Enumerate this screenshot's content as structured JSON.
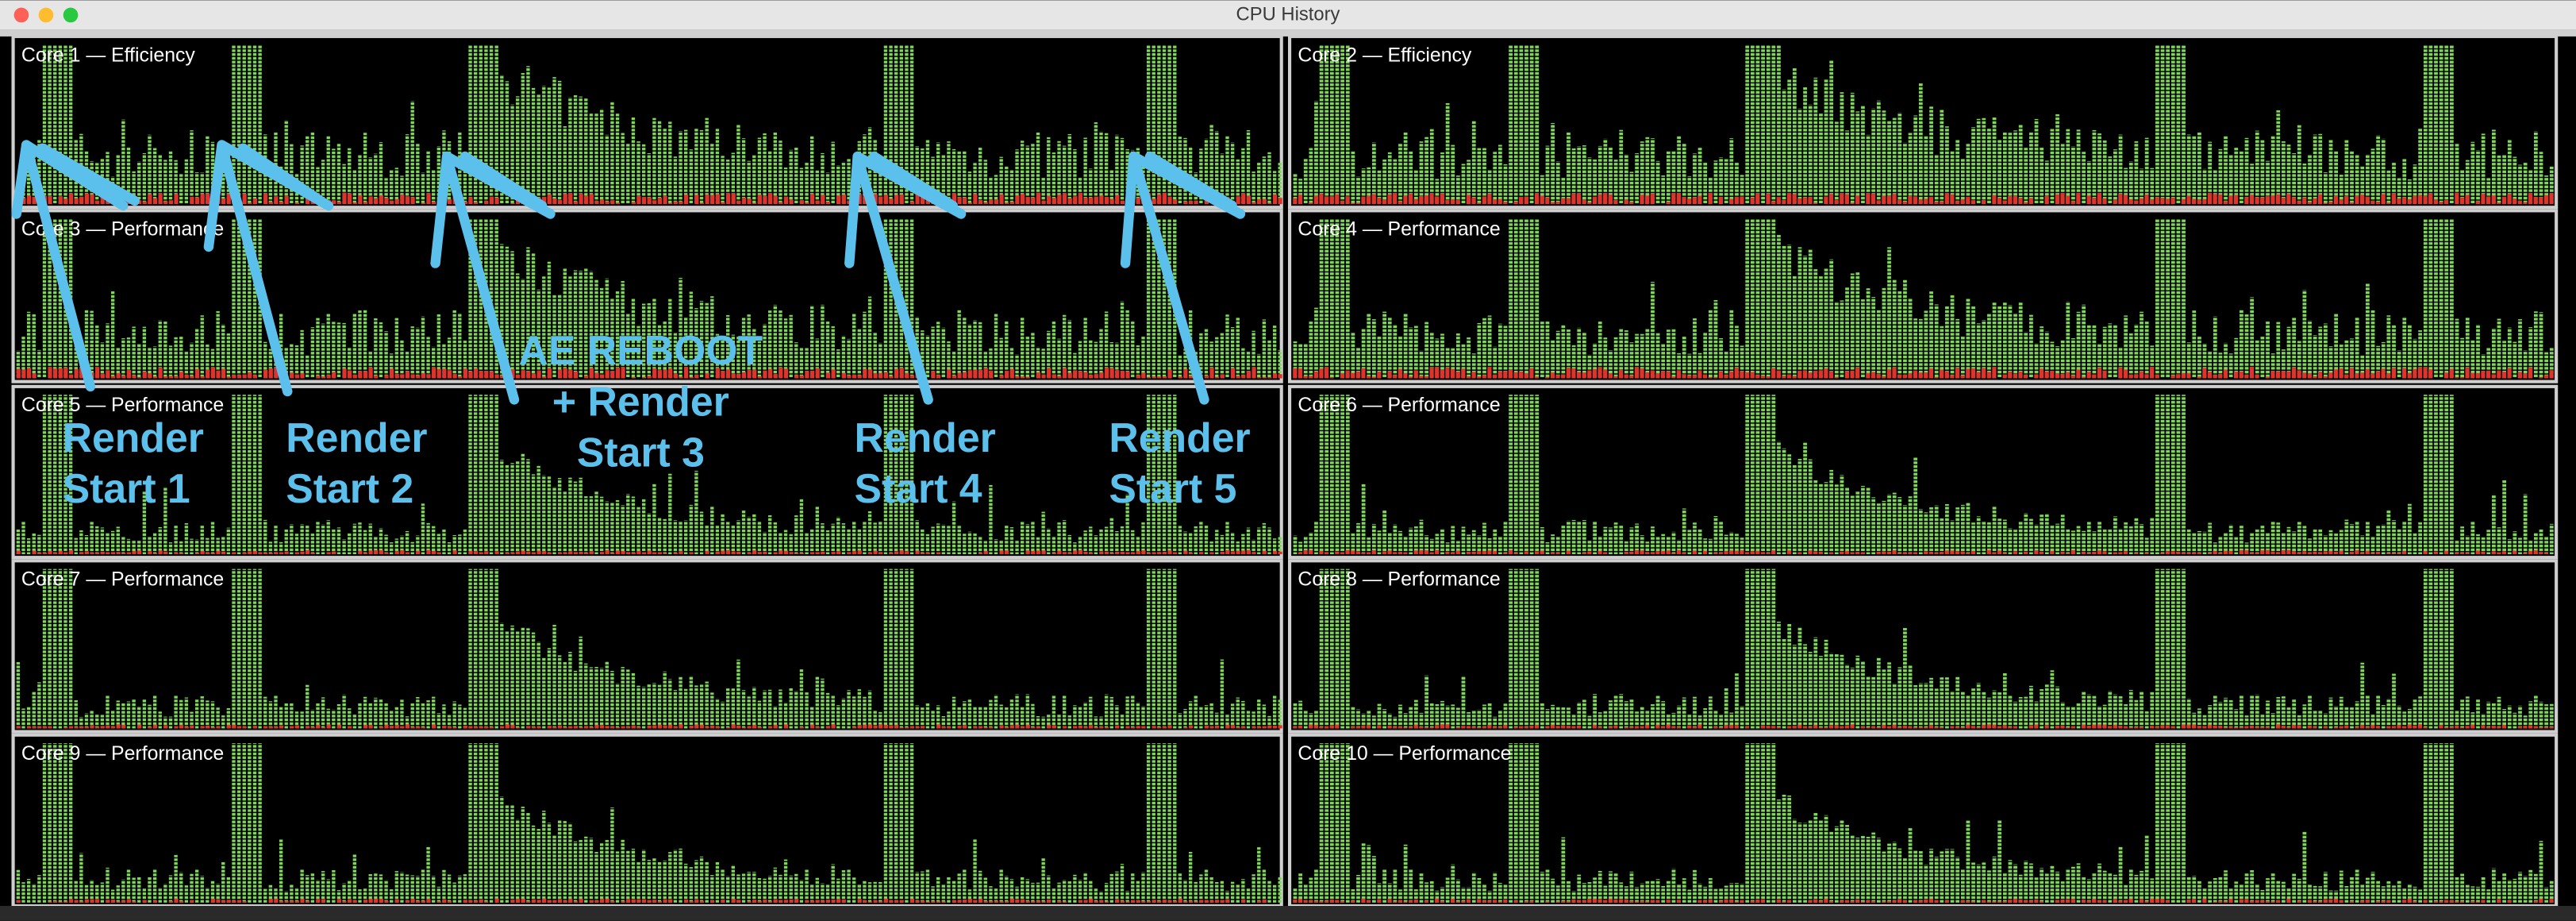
{
  "window": {
    "title": "CPU History"
  },
  "cores": [
    "Core 1 — Efficiency",
    "Core 2 — Efficiency",
    "Core 3 — Performance",
    "Core 4 — Performance",
    "Core 5 — Performance",
    "Core 6 — Performance",
    "Core 7 — Performance",
    "Core 8 — Performance",
    "Core 9 — Performance",
    "Core 10 — Performance"
  ],
  "annotations": [
    {
      "lines": [
        "Render",
        "Start 1"
      ]
    },
    {
      "lines": [
        "Render",
        "Start 2"
      ]
    },
    {
      "lines": [
        "AE REBOOT",
        "+ Render",
        "Start 3"
      ]
    },
    {
      "lines": [
        "Render",
        "Start 4"
      ]
    },
    {
      "lines": [
        "Render",
        "Start 5"
      ]
    }
  ]
}
